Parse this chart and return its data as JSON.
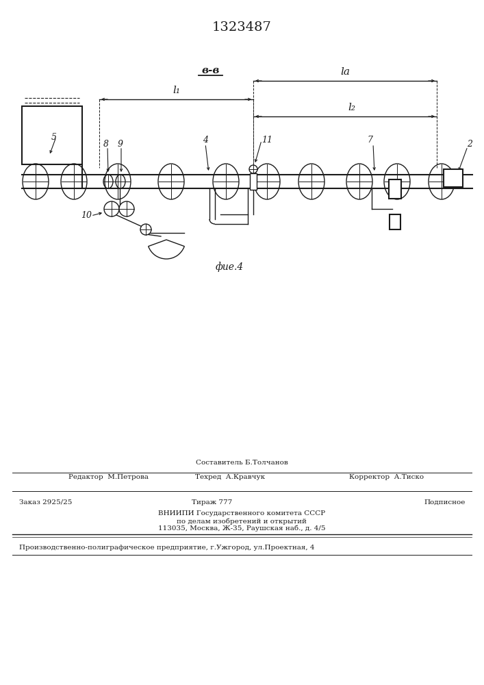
{
  "patent_number": "1323487",
  "title_bb": "в-в",
  "fig_label": "фие.4",
  "bg_color": "#ffffff",
  "line_color": "#1a1a1a",
  "dim_la": "lа",
  "dim_l1": "l₁",
  "dim_l2": "l₂",
  "label_2": "2",
  "label_4": "4",
  "label_5": "5",
  "label_7": "7",
  "label_8": "8",
  "label_9": "9",
  "label_10": "10",
  "label_11": "11",
  "sestavitel": "Составитель Б.Толчанов",
  "editor": "Редактор  М.Петрова",
  "tekhred": "Техред  А.Кравчук",
  "korrektor": "Корректор  А.Тиско",
  "zakaz": "Заказ 2925/25",
  "tirazh": "Тираж 777",
  "podpisnoe": "Подписное",
  "vniip_line1": "ВНИИПИ Государственного комитета СССР",
  "vniip_line2": "по делам изобретений и открытий",
  "vniip_line3": "113035, Москва, Ж-35, Раушская наб., д. 4/5",
  "prod_line": "Производственно-полиграфическое предприятие, г.Ужгород, ул.Проектная, 4"
}
